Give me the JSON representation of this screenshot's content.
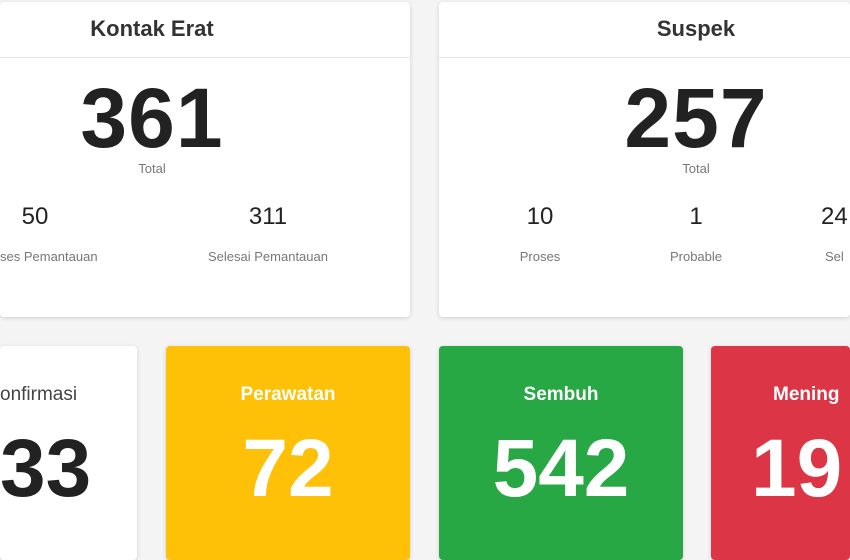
{
  "kontak_erat": {
    "title": "Kontak Erat",
    "total": "361",
    "total_label": "Total",
    "stats": [
      {
        "value": "50",
        "label": "ses Pemantauan"
      },
      {
        "value": "311",
        "label": "Selesai Pemantauan"
      }
    ]
  },
  "suspek": {
    "title": "Suspek",
    "total": "257",
    "total_label": "Total",
    "stats": [
      {
        "value": "10",
        "label": "Proses"
      },
      {
        "value": "1",
        "label": "Probable"
      },
      {
        "value": "24",
        "label": "Sel"
      }
    ]
  },
  "summary": [
    {
      "label": "onfirmasi",
      "value": "33",
      "color": "#ffffff"
    },
    {
      "label": "Perawatan",
      "value": "72",
      "color": "#ffc107"
    },
    {
      "label": "Sembuh",
      "value": "542",
      "color": "#28a745"
    },
    {
      "label": "Mening",
      "value": "19",
      "color": "#dc3545"
    }
  ]
}
